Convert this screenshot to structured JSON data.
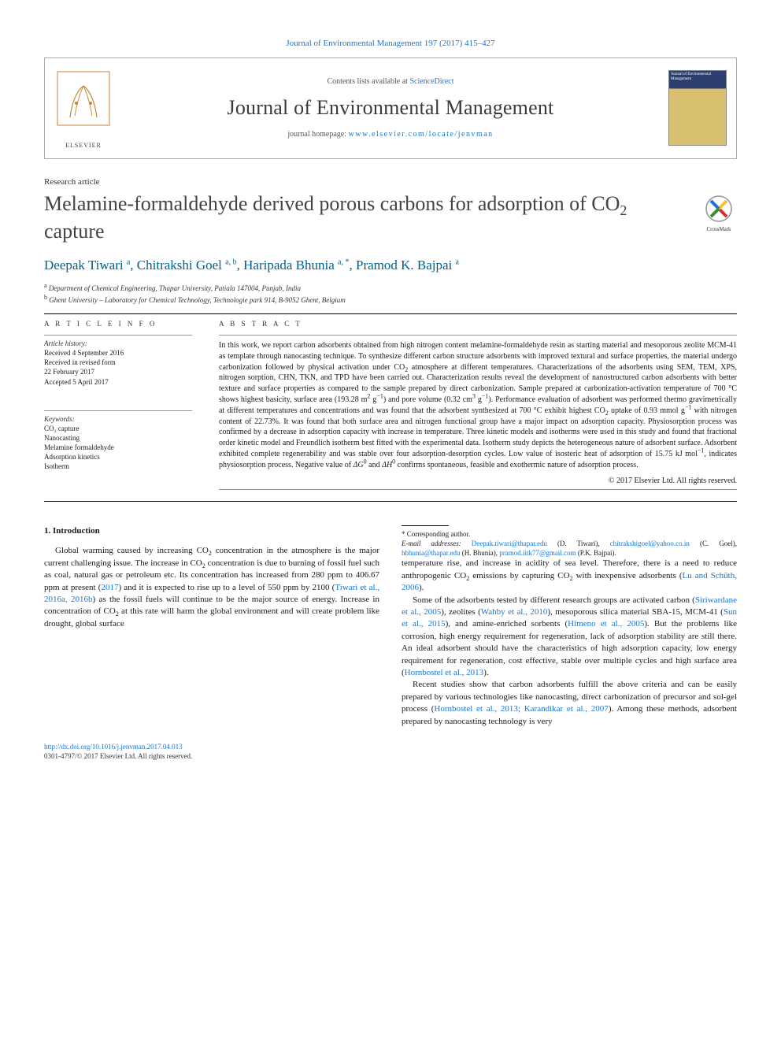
{
  "colors": {
    "link": "#1976d2",
    "author": "#005f8f",
    "heading": "#434343",
    "text": "#1a1a1a",
    "border": "#aaaaaa"
  },
  "header": {
    "citation": "Journal of Environmental Management 197 (2017) 415–427",
    "contents_prefix": "Contents lists available at ",
    "contents_link": "ScienceDirect",
    "journal_name": "Journal of Environmental Management",
    "homepage_prefix": "journal homepage: ",
    "homepage_url": "www.elsevier.com/locate/jenvman",
    "publisher_logo_label": "ELSEVIER",
    "cover_label": "Journal of Environmental Management"
  },
  "article": {
    "type": "Research article",
    "title_html": "Melamine-formaldehyde derived porous carbons for adsorption of CO<sub>2</sub> capture",
    "crossmark": "CrossMark"
  },
  "authors_html": "Deepak Tiwari <sup>a</sup>, Chitrakshi Goel <sup>a, b</sup>, Haripada Bhunia <sup>a, *</sup>, Pramod K. Bajpai <sup>a</sup>",
  "affiliations": [
    {
      "mark": "a",
      "text": "Department of Chemical Engineering, Thapar University, Patiala 147004, Punjab, India"
    },
    {
      "mark": "b",
      "text": "Ghent University – Laboratory for Chemical Technology, Technologie park 914, B-9052 Ghent, Belgium"
    }
  ],
  "article_info": {
    "heading": "A R T I C L E  I N F O",
    "history_label": "Article history:",
    "history": [
      "Received 4 September 2016",
      "Received in revised form",
      "22 February 2017",
      "Accepted 5 April 2017"
    ],
    "keywords_label": "Keywords:",
    "keywords": [
      "CO₂ capture",
      "Nanocasting",
      "Melamine formaldehyde",
      "Adsorption kinetics",
      "Isotherm"
    ]
  },
  "abstract": {
    "heading": "A B S T R A C T",
    "text_html": "In this work, we report carbon adsorbents obtained from high nitrogen content melamine-formaldehyde resin as starting material and mesoporous zeolite MCM-41 as template through nanocasting technique. To synthesize different carbon structure adsorbents with improved textural and surface properties, the material undergo carbonization followed by physical activation under CO<sub>2</sub> atmosphere at different temperatures. Characterizations of the adsorbents using SEM, TEM, XPS, nitrogen sorption, CHN, TKN, and TPD have been carried out. Characterization results reveal the development of nanostructured carbon adsorbents with better texture and surface properties as compared to the sample prepared by direct carbonization. Sample prepared at carbonization-activation temperature of 700 °C shows highest basicity, surface area (193.28 m<sup>2</sup> g<sup>−1</sup>) and pore volume (0.32 cm<sup>3</sup> g<sup>−1</sup>). Performance evaluation of adsorbent was performed thermo gravimetrically at different temperatures and concentrations and was found that the adsorbent synthesized at 700 °C exhibit highest CO<sub>2</sub> uptake of 0.93 mmol g<sup>−1</sup> with nitrogen content of 22.73%. It was found that both surface area and nitrogen functional group have a major impact on adsorption capacity. Physiosorption process was confirmed by a decrease in adsorption capacity with increase in temperature. Three kinetic models and isotherms were used in this study and found that fractional order kinetic model and Freundlich isotherm best fitted with the experimental data. Isotherm study depicts the heterogeneous nature of adsorbent surface. Adsorbent exhibited complete regenerability and was stable over four adsorption-desorption cycles. Low value of isosteric heat of adsorption of 15.75 kJ mol<sup>−1</sup>, indicates physiosorption process. Negative value of <i>ΔG</i><sup>0</sup> and <i>ΔH</i><sup>0</sup> confirms spontaneous, feasible and exothermic nature of adsorption process.",
    "copyright": "© 2017 Elsevier Ltd. All rights reserved."
  },
  "body": {
    "section_heading": "1. Introduction",
    "p1_html": "Global warming caused by increasing CO<sub>2</sub> concentration in the atmosphere is the major current challenging issue. The increase in CO<sub>2</sub> concentration is due to burning of fossil fuel such as coal, natural gas or petroleum etc. Its concentration has increased from 280 ppm to 406.67 ppm at present (<span class=\"link\">2017</span>) and it is expected to rise up to a level of 550 ppm by 2100 (<span class=\"link\">Tiwari et al., 2016a, 2016b</span>) as the fossil fuels will continue to be the major source of energy. Increase in concentration of CO<sub>2</sub> at this rate will harm the global environment and will create problem like drought, global surface",
    "p2_html": "temperature rise, and increase in acidity of sea level. Therefore, there is a need to reduce anthropogenic CO<sub>2</sub> emissions by capturing CO<sub>2</sub> with inexpensive adsorbents (<span class=\"link\">Lu and Schüth, 2006</span>).",
    "p3_html": "Some of the adsorbents tested by different research groups are activated carbon (<span class=\"link\">Siriwardane et al., 2005</span>), zeolites (<span class=\"link\">Wahby et al., 2010</span>), mesoporous silica material SBA-15, MCM-41 (<span class=\"link\">Sun et al., 2015</span>), and amine-enriched sorbents (<span class=\"link\">Himeno et al., 2005</span>). But the problems like corrosion, high energy requirement for regeneration, lack of adsorption stability are still there. An ideal adsorbent should have the characteristics of high adsorption capacity, low energy requirement for regeneration, cost effective, stable over multiple cycles and high surface area (<span class=\"link\">Hornbostel et al., 2013</span>).",
    "p4_html": "Recent studies show that carbon adsorbents fulfill the above criteria and can be easily prepared by various technologies like nanocasting, direct carbonization of precursor and sol-gel process (<span class=\"link\">Hornbostel et al., 2013; Karandikar et al., 2007</span>). Among these methods, adsorbent prepared by nanocasting technology is very"
  },
  "footnotes": {
    "corresponding": "* Corresponding author.",
    "email_label": "E-mail addresses:",
    "emails_html": "<a>Deepak.tiwari@thapar.edu</a> (D. Tiwari), <a>chitrakshigoel@yahoo.co.in</a> (C. Goel), <a>hbhunia@thapar.edu</a> (H. Bhunia), <a>pramod.iitk77@gmail.com</a> (P.K. Bajpai)."
  },
  "footer": {
    "doi": "http://dx.doi.org/10.1016/j.jenvman.2017.04.013",
    "issn_line": "0301-4797/© 2017 Elsevier Ltd. All rights reserved."
  }
}
